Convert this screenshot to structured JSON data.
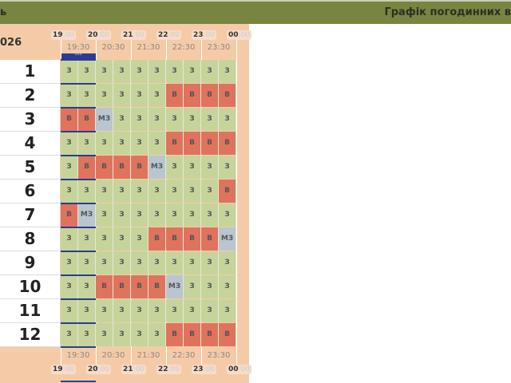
{
  "header": {
    "left_label": "ь",
    "title": "Графік погодинних в"
  },
  "year_label": "026",
  "hours": [
    "19",
    "20",
    "21",
    "22",
    "23",
    "00"
  ],
  "hour_suffix": ":00",
  "half_hours": [
    "19:30",
    "20:30",
    "21:30",
    "22:30",
    "23:30"
  ],
  "now_marker": "***",
  "colors": {
    "З": "#c6d49c",
    "В": "#e0735e",
    "МЗ": "#b9c6cf",
    "header": "#778540",
    "panel": "#f5cba7",
    "current": "#2a3c96"
  },
  "rows": [
    {
      "label": "1",
      "cells": [
        "З",
        "З",
        "З",
        "З",
        "З",
        "З",
        "З",
        "З",
        "З",
        "З"
      ]
    },
    {
      "label": "2",
      "cells": [
        "З",
        "З",
        "З",
        "З",
        "З",
        "З",
        "В",
        "В",
        "В",
        "В"
      ]
    },
    {
      "label": "3",
      "cells": [
        "В",
        "В",
        "МЗ",
        "З",
        "З",
        "З",
        "З",
        "З",
        "З",
        "З"
      ]
    },
    {
      "label": "4",
      "cells": [
        "З",
        "З",
        "З",
        "З",
        "З",
        "З",
        "В",
        "В",
        "В",
        "В"
      ]
    },
    {
      "label": "5",
      "cells": [
        "З",
        "В",
        "В",
        "В",
        "В",
        "МЗ",
        "З",
        "З",
        "З",
        "З"
      ]
    },
    {
      "label": "6",
      "cells": [
        "З",
        "З",
        "З",
        "З",
        "З",
        "З",
        "З",
        "З",
        "З",
        "В"
      ]
    },
    {
      "label": "7",
      "cells": [
        "В",
        "МЗ",
        "З",
        "З",
        "З",
        "З",
        "З",
        "З",
        "З",
        "З"
      ]
    },
    {
      "label": "8",
      "cells": [
        "З",
        "З",
        "З",
        "З",
        "З",
        "В",
        "В",
        "В",
        "В",
        "МЗ"
      ]
    },
    {
      "label": "9",
      "cells": [
        "З",
        "З",
        "З",
        "З",
        "З",
        "З",
        "З",
        "З",
        "З",
        "З"
      ]
    },
    {
      "label": "10",
      "cells": [
        "З",
        "З",
        "В",
        "В",
        "В",
        "В",
        "МЗ",
        "З",
        "З",
        "З"
      ]
    },
    {
      "label": "11",
      "cells": [
        "З",
        "З",
        "З",
        "З",
        "З",
        "З",
        "З",
        "З",
        "З",
        "З"
      ]
    },
    {
      "label": "12",
      "cells": [
        "З",
        "З",
        "З",
        "З",
        "З",
        "З",
        "В",
        "В",
        "В",
        "В"
      ]
    }
  ]
}
